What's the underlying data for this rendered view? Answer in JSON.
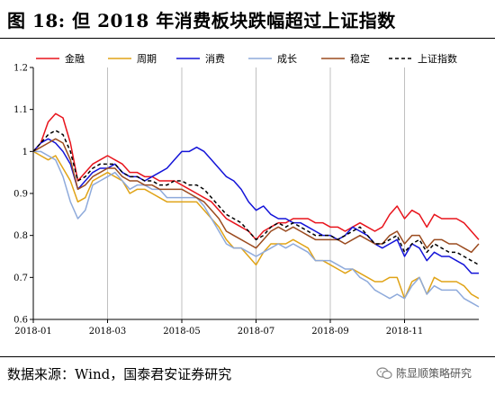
{
  "figure": {
    "title": "图 18: 但 2018 年消费板块跌幅超过上证指数",
    "source": "数据来源：Wind，国泰君安证券研究",
    "watermark": "陈显顺策略研究",
    "watermark_icon": "wechat-icon"
  },
  "chart_data": {
    "type": "line",
    "xlabel": "",
    "ylabel": "",
    "ylim": [
      0.6,
      1.2
    ],
    "yticks": [
      0.6,
      0.7,
      0.8,
      0.9,
      1,
      1.1,
      1.2
    ],
    "ytick_labels": [
      "0.6",
      "0.7",
      "0.8",
      "0.9",
      "1",
      "1.1",
      "1.2"
    ],
    "xrange": [
      0,
      60
    ],
    "xticks": [
      {
        "x": 0,
        "label": "2018-01"
      },
      {
        "x": 10,
        "label": "2018-03"
      },
      {
        "x": 20,
        "label": "2018-05"
      },
      {
        "x": 30,
        "label": "2018-07"
      },
      {
        "x": 40,
        "label": "2018-09"
      },
      {
        "x": 50,
        "label": "2018-11"
      }
    ],
    "grid": "vertical",
    "legend_position": "top",
    "series": [
      {
        "name": "金融",
        "color": "#e8141c",
        "dash": "",
        "values": [
          1.0,
          1.02,
          1.07,
          1.09,
          1.08,
          1.02,
          0.93,
          0.95,
          0.97,
          0.98,
          0.99,
          0.98,
          0.97,
          0.95,
          0.95,
          0.94,
          0.94,
          0.93,
          0.93,
          0.93,
          0.92,
          0.91,
          0.9,
          0.89,
          0.88,
          0.86,
          0.84,
          0.83,
          0.82,
          0.81,
          0.79,
          0.81,
          0.82,
          0.83,
          0.83,
          0.84,
          0.84,
          0.84,
          0.83,
          0.83,
          0.82,
          0.82,
          0.81,
          0.82,
          0.83,
          0.82,
          0.81,
          0.82,
          0.85,
          0.87,
          0.84,
          0.86,
          0.85,
          0.82,
          0.85,
          0.84,
          0.84,
          0.84,
          0.83,
          0.81,
          0.79
        ]
      },
      {
        "name": "周期",
        "color": "#e0a316",
        "dash": "",
        "values": [
          1.0,
          0.99,
          0.98,
          0.99,
          0.96,
          0.93,
          0.88,
          0.89,
          0.93,
          0.94,
          0.95,
          0.94,
          0.93,
          0.9,
          0.91,
          0.91,
          0.9,
          0.89,
          0.88,
          0.88,
          0.88,
          0.88,
          0.88,
          0.86,
          0.84,
          0.82,
          0.79,
          0.77,
          0.77,
          0.75,
          0.73,
          0.76,
          0.78,
          0.78,
          0.78,
          0.79,
          0.78,
          0.77,
          0.74,
          0.74,
          0.73,
          0.72,
          0.71,
          0.72,
          0.71,
          0.7,
          0.69,
          0.69,
          0.7,
          0.7,
          0.65,
          0.69,
          0.7,
          0.66,
          0.7,
          0.69,
          0.69,
          0.69,
          0.68,
          0.66,
          0.65
        ]
      },
      {
        "name": "消费",
        "color": "#1414d8",
        "dash": "",
        "values": [
          1.0,
          1.02,
          1.03,
          1.02,
          1.0,
          0.97,
          0.91,
          0.93,
          0.95,
          0.96,
          0.96,
          0.97,
          0.95,
          0.94,
          0.94,
          0.93,
          0.94,
          0.95,
          0.96,
          0.98,
          1.0,
          1.0,
          1.01,
          1.0,
          0.98,
          0.96,
          0.94,
          0.93,
          0.91,
          0.88,
          0.86,
          0.87,
          0.85,
          0.84,
          0.84,
          0.83,
          0.83,
          0.82,
          0.81,
          0.8,
          0.8,
          0.79,
          0.8,
          0.82,
          0.81,
          0.8,
          0.78,
          0.77,
          0.78,
          0.79,
          0.75,
          0.78,
          0.77,
          0.74,
          0.76,
          0.75,
          0.75,
          0.74,
          0.73,
          0.71,
          0.71
        ]
      },
      {
        "name": "成长",
        "color": "#8eaadb",
        "dash": "",
        "values": [
          1.0,
          1.0,
          0.99,
          0.98,
          0.94,
          0.88,
          0.84,
          0.86,
          0.92,
          0.93,
          0.94,
          0.95,
          0.93,
          0.91,
          0.92,
          0.92,
          0.91,
          0.91,
          0.89,
          0.89,
          0.89,
          0.89,
          0.89,
          0.87,
          0.84,
          0.81,
          0.78,
          0.77,
          0.77,
          0.76,
          0.75,
          0.76,
          0.77,
          0.78,
          0.77,
          0.78,
          0.77,
          0.76,
          0.74,
          0.74,
          0.74,
          0.73,
          0.72,
          0.72,
          0.7,
          0.69,
          0.67,
          0.66,
          0.65,
          0.66,
          0.65,
          0.68,
          0.7,
          0.66,
          0.68,
          0.67,
          0.67,
          0.67,
          0.65,
          0.64,
          0.63
        ]
      },
      {
        "name": "稳定",
        "color": "#9b4b1f",
        "dash": "",
        "values": [
          1.0,
          1.01,
          1.02,
          1.03,
          1.02,
          0.98,
          0.91,
          0.92,
          0.94,
          0.95,
          0.96,
          0.96,
          0.94,
          0.93,
          0.93,
          0.92,
          0.92,
          0.91,
          0.91,
          0.91,
          0.91,
          0.9,
          0.89,
          0.88,
          0.86,
          0.84,
          0.81,
          0.8,
          0.79,
          0.78,
          0.77,
          0.79,
          0.81,
          0.82,
          0.81,
          0.82,
          0.81,
          0.8,
          0.79,
          0.79,
          0.79,
          0.79,
          0.78,
          0.79,
          0.8,
          0.79,
          0.78,
          0.78,
          0.8,
          0.81,
          0.78,
          0.8,
          0.8,
          0.77,
          0.79,
          0.79,
          0.78,
          0.78,
          0.77,
          0.76,
          0.78
        ]
      },
      {
        "name": "上证指数",
        "color": "#000000",
        "dash": "4,3",
        "values": [
          1.0,
          1.02,
          1.04,
          1.05,
          1.04,
          1.0,
          0.93,
          0.94,
          0.96,
          0.97,
          0.97,
          0.97,
          0.95,
          0.94,
          0.94,
          0.93,
          0.93,
          0.92,
          0.92,
          0.93,
          0.93,
          0.92,
          0.92,
          0.91,
          0.89,
          0.87,
          0.85,
          0.84,
          0.83,
          0.81,
          0.79,
          0.8,
          0.82,
          0.83,
          0.82,
          0.83,
          0.82,
          0.81,
          0.8,
          0.8,
          0.8,
          0.79,
          0.8,
          0.81,
          0.82,
          0.8,
          0.78,
          0.78,
          0.79,
          0.8,
          0.76,
          0.78,
          0.79,
          0.76,
          0.78,
          0.77,
          0.76,
          0.76,
          0.75,
          0.74,
          0.73
        ]
      }
    ]
  }
}
